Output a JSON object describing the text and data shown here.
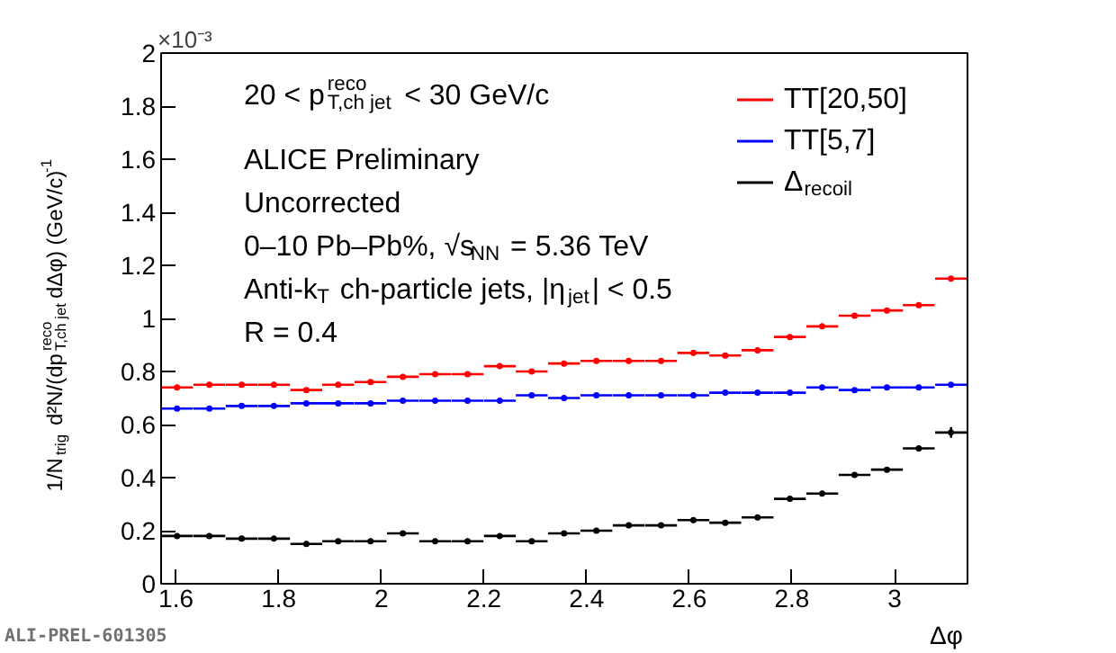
{
  "chart_data": {
    "type": "scatter",
    "xlabel": "Δφ",
    "ylabel": "1/N$_{trig}$ d²N/(dp$_{T,ch jet}$$^{reco}$dΔφ) (GeV/c)$^{-1}$",
    "x": [
      1.602,
      1.665,
      1.728,
      1.791,
      1.854,
      1.916,
      1.979,
      2.042,
      2.105,
      2.168,
      2.231,
      2.293,
      2.356,
      2.419,
      2.482,
      2.545,
      2.608,
      2.67,
      2.733,
      2.796,
      2.859,
      2.922,
      2.985,
      3.047,
      3.11
    ],
    "xlim": [
      1.571,
      3.142
    ],
    "xticks": [
      1.6,
      1.8,
      2,
      2.2,
      2.4,
      2.6,
      2.8,
      3
    ],
    "ylim": [
      0,
      2
    ],
    "yticks": [
      0,
      0.2,
      0.4,
      0.6,
      0.8,
      1,
      1.2,
      1.4,
      1.6,
      1.8,
      2
    ],
    "marker": "none",
    "grid": false,
    "legend": "top right",
    "series": [
      {
        "name": "TT[20,50]",
        "color": "#ff0000",
        "values": [
          0.74,
          0.75,
          0.75,
          0.75,
          0.73,
          0.75,
          0.76,
          0.78,
          0.79,
          0.79,
          0.82,
          0.8,
          0.83,
          0.84,
          0.84,
          0.84,
          0.87,
          0.86,
          0.88,
          0.93,
          0.97,
          1.01,
          1.03,
          1.05,
          1.15
        ],
        "xerrors": [
          0.031,
          0.031,
          0.031,
          0.031,
          0.031,
          0.031,
          0.031,
          0.031,
          0.031,
          0.031,
          0.031,
          0.031,
          0.031,
          0.031,
          0.031,
          0.031,
          0.031,
          0.031,
          0.031,
          0.031,
          0.031,
          0.031,
          0.031,
          0.031,
          0.031
        ],
        "errors": [
          0.01,
          0.01,
          0.01,
          0.01,
          0.01,
          0.01,
          0.01,
          0.01,
          0.01,
          0.01,
          0.01,
          0.01,
          0.01,
          0.01,
          0.01,
          0.01,
          0.01,
          0.01,
          0.01,
          0.01,
          0.01,
          0.01,
          0.01,
          0.01,
          0.01
        ]
      },
      {
        "name": "TT[5,7]",
        "color": "#0000ff",
        "values": [
          0.66,
          0.66,
          0.67,
          0.67,
          0.68,
          0.68,
          0.68,
          0.69,
          0.69,
          0.69,
          0.69,
          0.71,
          0.7,
          0.71,
          0.71,
          0.71,
          0.71,
          0.72,
          0.72,
          0.72,
          0.74,
          0.73,
          0.74,
          0.74,
          0.75
        ],
        "xerrors": [
          0.031,
          0.031,
          0.031,
          0.031,
          0.031,
          0.031,
          0.031,
          0.031,
          0.031,
          0.031,
          0.031,
          0.031,
          0.031,
          0.031,
          0.031,
          0.031,
          0.031,
          0.031,
          0.031,
          0.031,
          0.031,
          0.031,
          0.031,
          0.031,
          0.031
        ]
      },
      {
        "name": "Δ$_{recoil}$",
        "color": "#000000",
        "values": [
          0.18,
          0.18,
          0.17,
          0.17,
          0.15,
          0.16,
          0.16,
          0.19,
          0.16,
          0.16,
          0.18,
          0.16,
          0.19,
          0.2,
          0.22,
          0.22,
          0.24,
          0.23,
          0.25,
          0.32,
          0.34,
          0.41,
          0.43,
          0.51,
          0.57
        ],
        "xerrors": [
          0.031,
          0.031,
          0.031,
          0.031,
          0.031,
          0.031,
          0.031,
          0.031,
          0.031,
          0.031,
          0.031,
          0.031,
          0.031,
          0.031,
          0.031,
          0.031,
          0.031,
          0.031,
          0.031,
          0.031,
          0.031,
          0.031,
          0.031,
          0.031,
          0.031
        ],
        "errors": [
          0.01,
          0.01,
          0.01,
          0.01,
          0.01,
          0.01,
          0.01,
          0.01,
          0.01,
          0.01,
          0.01,
          0.01,
          0.01,
          0.01,
          0.01,
          0.01,
          0.01,
          0.01,
          0.01,
          0.01,
          0.01,
          0.01,
          0.01,
          0.01,
          0.02
        ]
      }
    ],
    "annotations": [
      "×10⁻³",
      "20 < p$_{T,ch jet}$$^{reco}$ < 30 GeV/c",
      "ALICE Preliminary",
      "Uncorrected",
      "0–10 Pb–Pb%, √s$_{NN}$ = 5.36 TeV",
      "Anti-k$_{T}$ ch-particle jets, |η$_{jet}$| < 0.5",
      "R = 0.4",
      "ALI-PREL-601305"
    ]
  }
}
